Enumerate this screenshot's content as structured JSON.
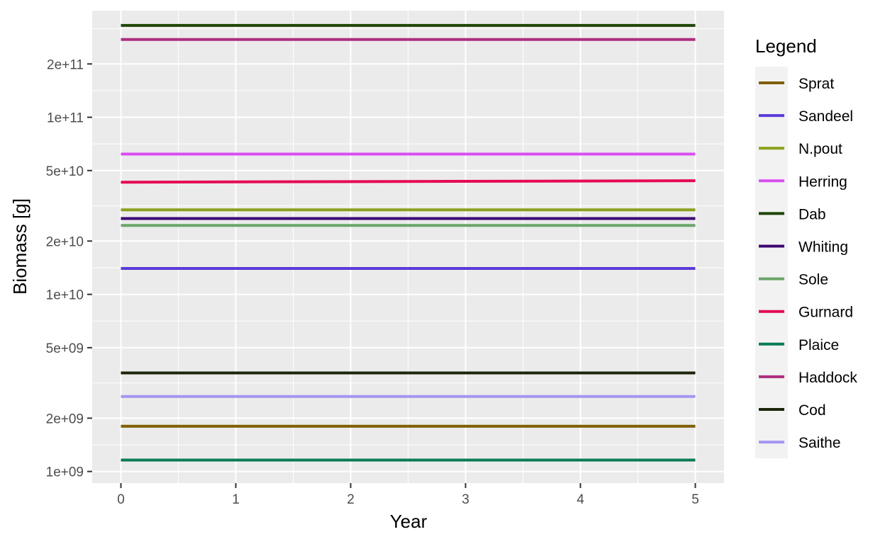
{
  "chart_data": {
    "type": "line",
    "xlabel": "Year",
    "ylabel": "Biomass [g]",
    "y_scale": "log10",
    "x_ticks": [
      0,
      1,
      2,
      3,
      4,
      5
    ],
    "x_tick_labels": [
      "0",
      "1",
      "2",
      "3",
      "4",
      "5"
    ],
    "xlim": [
      -0.25,
      5.25
    ],
    "y_ticks": [
      1000000000,
      2000000000,
      5000000000,
      10000000000,
      20000000000,
      50000000000,
      100000000000,
      200000000000
    ],
    "y_tick_labels": [
      "1e+09",
      "2e+09",
      "5e+09",
      "1e+10",
      "2e+10",
      "5e+10",
      "1e+11",
      "2e+11"
    ],
    "ylim": [
      860000000,
      400000000000
    ],
    "grid": true,
    "legend_title": "Legend",
    "legend_position": "right",
    "x": [
      0,
      5
    ],
    "series": [
      {
        "name": "Sprat",
        "color": "#7f5f00",
        "values": [
          1800000000,
          1800000000
        ]
      },
      {
        "name": "Sandeel",
        "color": "#5b3ad9",
        "values": [
          14000000000,
          14000000000
        ]
      },
      {
        "name": "N.pout",
        "color": "#8aa21b",
        "values": [
          30000000000,
          30000000000
        ]
      },
      {
        "name": "Herring",
        "color": "#d94ef2",
        "values": [
          62000000000,
          62000000000
        ]
      },
      {
        "name": "Dab",
        "color": "#1f4506",
        "values": [
          330000000000,
          330000000000
        ]
      },
      {
        "name": "Whiting",
        "color": "#3c0673",
        "values": [
          26800000000,
          26800000000
        ]
      },
      {
        "name": "Sole",
        "color": "#6aa56a",
        "values": [
          24500000000,
          24500000000
        ]
      },
      {
        "name": "Gurnard",
        "color": "#e50a55",
        "values": [
          43000000000,
          43800000000
        ]
      },
      {
        "name": "Plaice",
        "color": "#0b7a56",
        "values": [
          1160000000,
          1160000000
        ]
      },
      {
        "name": "Haddock",
        "color": "#ad2e7e",
        "values": [
          275000000000,
          275000000000
        ]
      },
      {
        "name": "Cod",
        "color": "#1b260b",
        "values": [
          3600000000,
          3600000000
        ]
      },
      {
        "name": "Saithe",
        "color": "#a496f2",
        "values": [
          2650000000,
          2650000000
        ]
      }
    ]
  }
}
